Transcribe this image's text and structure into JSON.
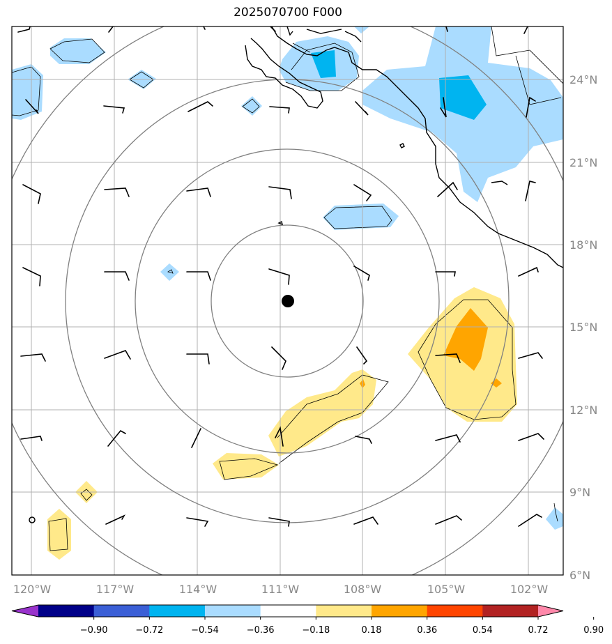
{
  "title": "2025070700 F000",
  "map": {
    "lon_range": [
      -120.5,
      -101.3
    ],
    "lat_range": [
      6,
      25.9
    ],
    "lon_ticks": [
      "120°W",
      "117°W",
      "114°W",
      "111°W",
      "108°W",
      "105°W",
      "102°W"
    ],
    "lat_ticks": [
      "6°N",
      "9°N",
      "12°N",
      "15°N",
      "18°N",
      "21°N",
      "24°N"
    ],
    "grid": true,
    "center_marker": {
      "lon": -110.75,
      "lat": 15.95
    },
    "range_rings_deg": [
      3,
      5.5,
      8,
      11
    ]
  },
  "colorbar": {
    "ticks": [
      "−0.90",
      "−0.72",
      "−0.54",
      "−0.36",
      "−0.18",
      "0.18",
      "0.36",
      "0.54",
      "0.72",
      "0.90"
    ],
    "colors": [
      "#9933cc",
      "#000088",
      "#3b5fd6",
      "#00b4f0",
      "#aadcff",
      "#ffffff",
      "#ffe98a",
      "#ffa500",
      "#ff4500",
      "#b22222",
      "#ff88aa"
    ]
  },
  "colors": {
    "grid": "#b0b0b0",
    "ring": "#808080",
    "coast": "#000000",
    "light_blue": "#aadcff",
    "medium_blue": "#00b4f0",
    "light_yellow": "#ffe98a",
    "orange": "#ffa500"
  }
}
